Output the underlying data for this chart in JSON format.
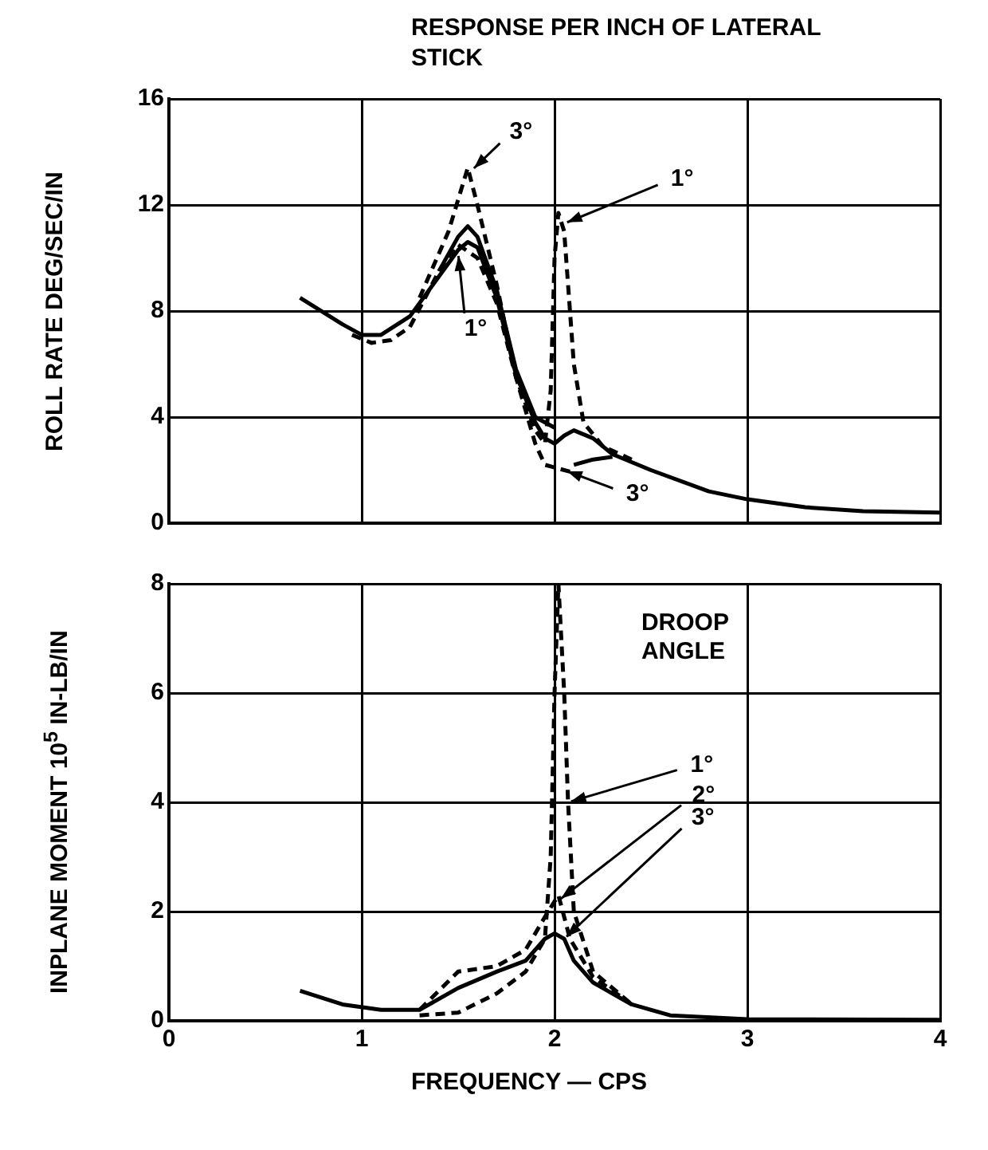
{
  "chart_data": [
    {
      "type": "line",
      "title": "RESPONSE PER INCH OF LATERAL STICK",
      "ylabel": "ROLL RATE DEG/SEC/IN",
      "xlim": [
        0,
        4
      ],
      "xticks": [
        0,
        1,
        2,
        3,
        4
      ],
      "ylim": [
        0,
        16
      ],
      "yticks": [
        0,
        4,
        8,
        12,
        16
      ],
      "grid": true,
      "tick_labels": "y",
      "marker": "none",
      "series": [
        {
          "color": "#000000",
          "line_style": "solid",
          "x": [
            0.68,
            0.9,
            1.0,
            1.1,
            1.25,
            1.4,
            1.5,
            1.55,
            1.6,
            1.7,
            1.8,
            1.9,
            1.95,
            2.0,
            2.05,
            2.1,
            2.2,
            2.3,
            2.5,
            2.8,
            3.0,
            3.3,
            3.6,
            4.0
          ],
          "values": [
            8.5,
            7.5,
            7.1,
            7.1,
            7.8,
            9.3,
            10.3,
            10.6,
            10.4,
            8.5,
            5.6,
            3.8,
            3.2,
            3.0,
            3.3,
            3.5,
            3.2,
            2.6,
            2.0,
            1.2,
            0.9,
            0.6,
            0.45,
            0.4
          ]
        },
        {
          "color": "#000000",
          "line_style": "solid",
          "x": [
            1.4,
            1.5,
            1.55,
            1.6,
            1.7,
            1.8,
            1.9,
            2.0
          ],
          "values": [
            9.5,
            10.8,
            11.2,
            10.8,
            8.8,
            5.8,
            4.0,
            3.6
          ]
        },
        {
          "color": "#000000",
          "line_style": "dashed",
          "x": [
            0.95,
            1.05,
            1.15,
            1.25,
            1.4,
            1.5,
            1.6,
            1.7,
            1.8,
            1.9,
            1.95,
            1.98,
            2.0,
            2.02,
            2.05,
            2.1,
            2.15,
            2.25,
            2.4
          ],
          "values": [
            7.1,
            6.8,
            6.9,
            7.4,
            9.5,
            10.5,
            10.0,
            8.3,
            5.5,
            3.5,
            3.0,
            5.0,
            10.0,
            11.7,
            11.0,
            6.0,
            3.8,
            2.9,
            2.4
          ]
        },
        {
          "color": "#000000",
          "line_style": "dashed",
          "x": [
            1.3,
            1.45,
            1.55,
            1.6,
            1.7,
            1.8,
            1.9,
            1.95,
            2.0,
            2.1
          ],
          "values": [
            8.5,
            11.0,
            13.4,
            12.0,
            9.0,
            5.5,
            3.0,
            2.2,
            2.1,
            1.9
          ]
        },
        {
          "color": "#000000",
          "line_style": "solid",
          "x": [
            2.1,
            2.2,
            2.3
          ],
          "values": [
            2.2,
            2.4,
            2.5
          ]
        }
      ],
      "annotations": [
        {
          "text": "3°",
          "x": 1.57,
          "y": 13.3
        },
        {
          "text": "1°",
          "x": 2.05,
          "y": 11.3
        },
        {
          "text": "1°",
          "x": 1.5,
          "y": 10.2
        },
        {
          "text": "3°",
          "x": 2.05,
          "y": 2.0
        }
      ]
    },
    {
      "type": "line",
      "xlabel": "FREQUENCY — CPS",
      "ylabel": "INPLANE MOMENT 10$^{5}$ IN-LB/IN",
      "xlim": [
        0,
        4
      ],
      "xticks": [
        0,
        1,
        2,
        3,
        4
      ],
      "ylim": [
        0,
        8
      ],
      "yticks": [
        0,
        2,
        4,
        6,
        8
      ],
      "grid": true,
      "marker": "none",
      "series": [
        {
          "color": "#000000",
          "line_style": "solid",
          "x": [
            0.68,
            0.9,
            1.1,
            1.3,
            1.5,
            1.7,
            1.85,
            1.95,
            2.0,
            2.05,
            2.1,
            2.2,
            2.4,
            2.6,
            3.0,
            4.0
          ],
          "values": [
            0.55,
            0.3,
            0.2,
            0.2,
            0.6,
            0.9,
            1.1,
            1.5,
            1.6,
            1.5,
            1.1,
            0.7,
            0.3,
            0.1,
            0.03,
            0.02
          ]
        },
        {
          "color": "#000000",
          "line_style": "dashed",
          "x": [
            1.3,
            1.5,
            1.7,
            1.85,
            1.95,
            2.02,
            2.08,
            2.2,
            2.4
          ],
          "values": [
            0.2,
            0.9,
            1.0,
            1.3,
            1.9,
            2.3,
            1.5,
            0.8,
            0.3
          ]
        },
        {
          "color": "#000000",
          "line_style": "dashed",
          "x": [
            1.3,
            1.5,
            1.7,
            1.85,
            1.95,
            1.98,
            2.0,
            2.02,
            2.05,
            2.07,
            2.1,
            2.2,
            2.4
          ],
          "values": [
            0.1,
            0.15,
            0.5,
            0.9,
            1.5,
            3.0,
            6.0,
            8.0,
            6.0,
            4.0,
            2.0,
            0.9,
            0.3
          ]
        }
      ],
      "annotations": [
        "DROOP ANGLE",
        {
          "text": "1°",
          "x": 2.07,
          "y": 4
        },
        {
          "text": "2°",
          "x": 2.02,
          "y": 2.2
        },
        {
          "text": "3°",
          "x": 2.05,
          "y": 1.5
        }
      ]
    }
  ]
}
